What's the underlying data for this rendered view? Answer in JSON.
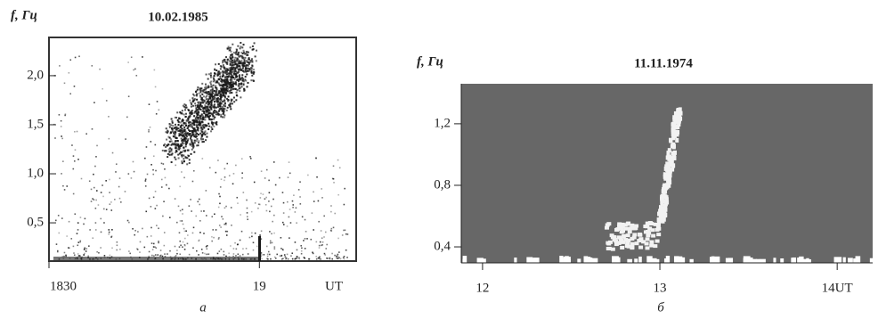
{
  "chart_data": [
    {
      "type": "spectrogram",
      "title": "10.02.1985",
      "y_label": "f, Гц",
      "x_label": "UT",
      "panel_label": "а",
      "xlim": [
        18.5,
        19.23
      ],
      "xticks": [
        {
          "value": 18.5,
          "label": "1830"
        },
        19
      ],
      "ylim": [
        0.11,
        2.39
      ],
      "yticks": [
        {
          "value": 0.5,
          "label": "0,5"
        },
        {
          "value": 1.0,
          "label": "1,0"
        },
        {
          "value": 1.5,
          "label": "1,5"
        },
        {
          "value": 2.0,
          "label": "2,0"
        }
      ],
      "color": "#1a1a1a",
      "background": "#ffffff"
    },
    {
      "type": "spectrogram",
      "title": "11.11.1974",
      "y_label": "f, Гц",
      "panel_label": "б",
      "xlim": [
        11.88,
        14.2
      ],
      "xticks": [
        12,
        13,
        {
          "value": 14,
          "label": "14UT"
        }
      ],
      "ylim": [
        0.296,
        1.46
      ],
      "yticks": [
        {
          "value": 0.4,
          "label": "0,4"
        },
        {
          "value": 0.8,
          "label": "0,8"
        },
        {
          "value": 1.2,
          "label": "1,2"
        }
      ],
      "color": "#f2f2f2",
      "background": "#676767"
    }
  ]
}
